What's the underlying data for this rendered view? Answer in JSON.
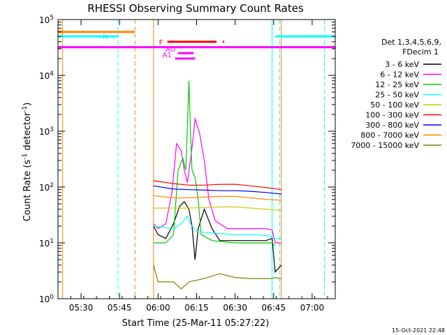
{
  "chart_data": {
    "type": "line",
    "title": "RHESSI Observing Summary Count Rates",
    "xlabel": "Start Time (25-Mar-11 05:27:22)",
    "ylabel_main": "Count Rate (s",
    "ylabel_sup1": "-1",
    "ylabel_mid": " detector",
    "ylabel_sup2": "-1",
    "ylabel_end": ")",
    "timestamp": "15-Oct-2021 22:48",
    "xlim": [
      5.35,
      7.15
    ],
    "ylog": true,
    "ylim": [
      1,
      100000
    ],
    "xticks": [
      {
        "v": 5.5,
        "label": "05:30"
      },
      {
        "v": 5.75,
        "label": "05:45"
      },
      {
        "v": 6.0,
        "label": "06:00"
      },
      {
        "v": 6.25,
        "label": "06:15"
      },
      {
        "v": 6.5,
        "label": "06:30"
      },
      {
        "v": 6.75,
        "label": "06:45"
      },
      {
        "v": 7.0,
        "label": "07:00"
      }
    ],
    "yticks": [
      {
        "v": 1,
        "base": "10",
        "exp": "0"
      },
      {
        "v": 10,
        "base": "10",
        "exp": "1"
      },
      {
        "v": 100,
        "base": "10",
        "exp": "2"
      },
      {
        "v": 1000,
        "base": "10",
        "exp": "3"
      },
      {
        "v": 10000,
        "base": "10",
        "exp": "4"
      },
      {
        "v": 100000,
        "base": "10",
        "exp": "5"
      }
    ],
    "legend": {
      "header": [
        "Det 1,3,4,5,6,9,",
        "FDecim 1"
      ],
      "placement": "right"
    },
    "series": [
      {
        "name": "3 - 6 keV",
        "color": "#000000",
        "points": [
          [
            5.97,
            20
          ],
          [
            6.0,
            14
          ],
          [
            6.05,
            12
          ],
          [
            6.1,
            22
          ],
          [
            6.14,
            45
          ],
          [
            6.17,
            55
          ],
          [
            6.2,
            40
          ],
          [
            6.22,
            20
          ],
          [
            6.24,
            5
          ],
          [
            6.26,
            18
          ],
          [
            6.3,
            40
          ],
          [
            6.35,
            18
          ],
          [
            6.4,
            11
          ],
          [
            6.5,
            11
          ],
          [
            6.6,
            11
          ],
          [
            6.7,
            11
          ],
          [
            6.74,
            12
          ],
          [
            6.76,
            3
          ],
          [
            6.8,
            4
          ]
        ]
      },
      {
        "name": "6 - 12 keV",
        "color": "#ff00ff",
        "points": [
          [
            5.97,
            22
          ],
          [
            6.0,
            18
          ],
          [
            6.05,
            22
          ],
          [
            6.09,
            80
          ],
          [
            6.12,
            600
          ],
          [
            6.15,
            450
          ],
          [
            6.17,
            200
          ],
          [
            6.19,
            120
          ],
          [
            6.22,
            500
          ],
          [
            6.24,
            1700
          ],
          [
            6.27,
            900
          ],
          [
            6.3,
            300
          ],
          [
            6.33,
            60
          ],
          [
            6.37,
            25
          ],
          [
            6.45,
            18
          ],
          [
            6.55,
            18
          ],
          [
            6.7,
            18
          ],
          [
            6.74,
            17
          ],
          [
            6.76,
            10
          ],
          [
            6.8,
            10
          ]
        ]
      },
      {
        "name": "12 - 25 keV",
        "color": "#00cc00",
        "points": [
          [
            5.97,
            10
          ],
          [
            6.05,
            10
          ],
          [
            6.1,
            14
          ],
          [
            6.13,
            200
          ],
          [
            6.16,
            330
          ],
          [
            6.18,
            200
          ],
          [
            6.2,
            8000
          ],
          [
            6.21,
            1000
          ],
          [
            6.22,
            200
          ],
          [
            6.24,
            150
          ],
          [
            6.26,
            60
          ],
          [
            6.28,
            14
          ],
          [
            6.35,
            11
          ],
          [
            6.5,
            10
          ],
          [
            6.65,
            10
          ],
          [
            6.74,
            10
          ],
          [
            6.76,
            9
          ]
        ]
      },
      {
        "name": "25 - 50 keV",
        "color": "#00ffff",
        "points": [
          [
            5.97,
            20
          ],
          [
            6.1,
            18
          ],
          [
            6.15,
            22
          ],
          [
            6.19,
            30
          ],
          [
            6.21,
            22
          ],
          [
            6.25,
            16
          ],
          [
            6.35,
            15
          ],
          [
            6.5,
            14
          ],
          [
            6.65,
            14
          ],
          [
            6.74,
            13
          ],
          [
            6.76,
            12
          ],
          [
            6.8,
            12
          ]
        ]
      },
      {
        "name": "50 - 100 keV",
        "color": "#cccc00",
        "points": [
          [
            5.97,
            42
          ],
          [
            6.1,
            42
          ],
          [
            6.2,
            42
          ],
          [
            6.3,
            43
          ],
          [
            6.4,
            44
          ],
          [
            6.5,
            44
          ],
          [
            6.6,
            42
          ],
          [
            6.7,
            40
          ],
          [
            6.8,
            38
          ]
        ]
      },
      {
        "name": "100 - 300 keV",
        "color": "#ff0000",
        "points": [
          [
            5.97,
            130
          ],
          [
            6.1,
            115
          ],
          [
            6.2,
            108
          ],
          [
            6.3,
            108
          ],
          [
            6.4,
            112
          ],
          [
            6.5,
            112
          ],
          [
            6.6,
            105
          ],
          [
            6.7,
            98
          ],
          [
            6.8,
            90
          ]
        ]
      },
      {
        "name": "300 - 800 keV",
        "color": "#0000ff",
        "points": [
          [
            5.97,
            105
          ],
          [
            6.1,
            92
          ],
          [
            6.2,
            90
          ],
          [
            6.3,
            88
          ],
          [
            6.4,
            86
          ],
          [
            6.5,
            86
          ],
          [
            6.6,
            84
          ],
          [
            6.7,
            80
          ],
          [
            6.8,
            75
          ]
        ]
      },
      {
        "name": "800 - 7000 keV",
        "color": "#ff8800",
        "points": [
          [
            5.97,
            70
          ],
          [
            6.1,
            64
          ],
          [
            6.2,
            64
          ],
          [
            6.3,
            66
          ],
          [
            6.4,
            68
          ],
          [
            6.5,
            68
          ],
          [
            6.6,
            64
          ],
          [
            6.7,
            60
          ],
          [
            6.8,
            58
          ]
        ]
      },
      {
        "name": "7000 - 15000 keV",
        "color": "#808000",
        "points": [
          [
            5.97,
            4
          ],
          [
            6.0,
            2
          ],
          [
            6.1,
            2
          ],
          [
            6.15,
            1.5
          ],
          [
            6.2,
            2
          ],
          [
            6.3,
            2.3
          ],
          [
            6.4,
            2.8
          ],
          [
            6.5,
            2.4
          ],
          [
            6.6,
            2.3
          ],
          [
            6.7,
            2.3
          ],
          [
            6.74,
            2.3
          ],
          [
            6.76,
            2.4
          ],
          [
            6.8,
            2.3
          ]
        ]
      }
    ],
    "spans": [
      {
        "label": "S",
        "color": "#ff8800",
        "y": 60000,
        "x1": 5.35,
        "x2": 5.85
      },
      {
        "label": "N",
        "color": "#00ffff",
        "y": 50000,
        "x1": 5.35,
        "x2": 5.74
      },
      {
        "label": "",
        "color": "#00ffff",
        "y": 50000,
        "x1": 6.76,
        "x2": 7.15
      },
      {
        "label": "",
        "color": "#ff00ff",
        "y": 32000,
        "x1": 5.35,
        "x2": 7.15
      },
      {
        "label": "F",
        "color": "#ff0000",
        "y": 40000,
        "x1": 6.06,
        "x2": 6.38
      },
      {
        "label": "",
        "color": "#ff0000",
        "y": 40000,
        "x1": 6.42,
        "x2": 6.43
      },
      {
        "label": "AO",
        "color": "#ff00ff",
        "y": 25000,
        "x1": 6.13,
        "x2": 6.23
      },
      {
        "label": "A1",
        "color": "#ff00ff",
        "y": 20000,
        "x1": 6.11,
        "x2": 6.24
      }
    ],
    "vlines": [
      {
        "x": 5.38,
        "color": "#ff8800",
        "style": "solid"
      },
      {
        "x": 5.85,
        "color": "#ff8800",
        "style": "dash"
      },
      {
        "x": 5.74,
        "color": "#00ffff",
        "style": "dash"
      },
      {
        "x": 5.97,
        "color": "#ff8800",
        "style": "solid"
      },
      {
        "x": 6.74,
        "color": "#00ffff",
        "style": "solid"
      },
      {
        "x": 6.8,
        "color": "#ff8800",
        "style": "solid"
      },
      {
        "x": 6.79,
        "color": "#00ffff",
        "style": "dash"
      },
      {
        "x": 7.08,
        "color": "#00ffff",
        "style": "dash"
      }
    ]
  }
}
